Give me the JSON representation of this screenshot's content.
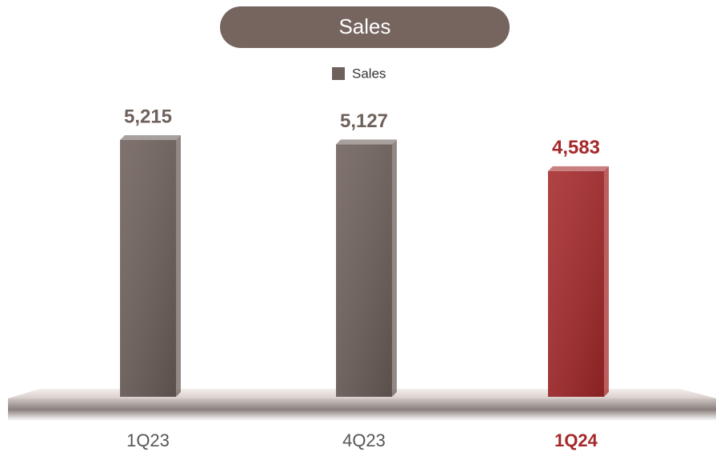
{
  "chart_data": {
    "type": "bar",
    "title": "Sales",
    "categories": [
      "1Q23",
      "4Q23",
      "1Q24"
    ],
    "series": [
      {
        "name": "Sales",
        "color": "#6e605b",
        "values": [
          5215,
          5127,
          4583
        ],
        "value_labels": [
          "5,215",
          "5,127",
          "4,583"
        ]
      }
    ],
    "colors": [
      "#6e605b",
      "#6e605b",
      "#a5282a"
    ]
  }
}
